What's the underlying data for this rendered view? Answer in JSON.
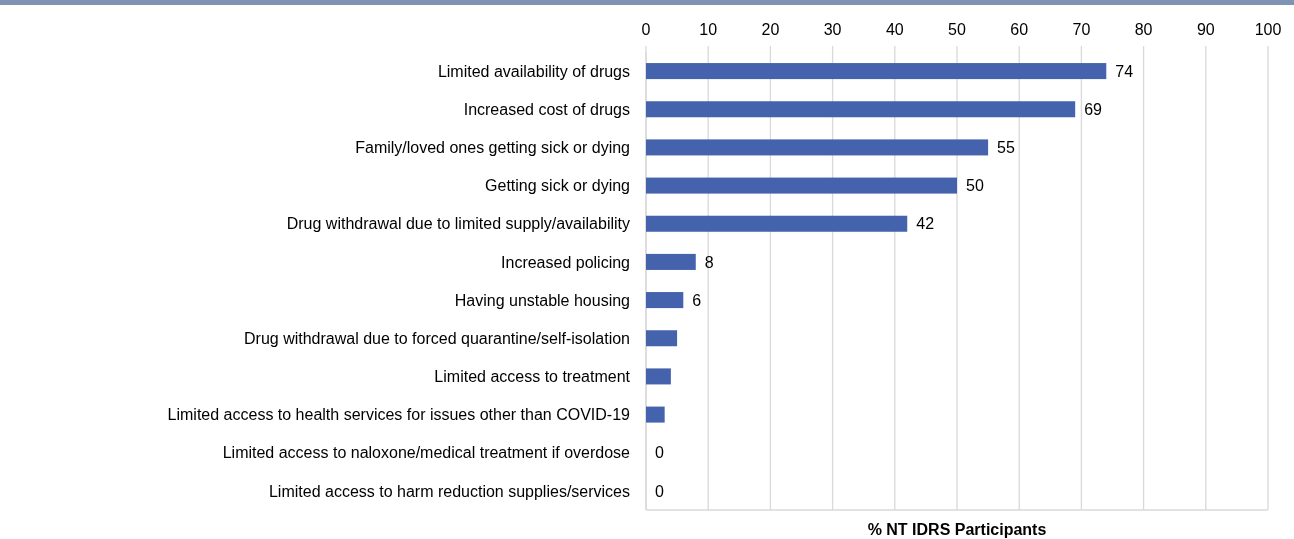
{
  "chart_data": {
    "type": "bar",
    "orientation": "horizontal",
    "xlabel": "% NT IDRS Participants",
    "categories": [
      "Limited availability of drugs",
      "Increased cost of drugs",
      "Family/loved ones getting sick or dying",
      "Getting sick or dying",
      "Drug withdrawal due to limited supply/availability",
      "Increased policing",
      "Having unstable housing",
      "Drug withdrawal due to forced quarantine/self-isolation",
      "Limited access to treatment",
      "Limited access to health services for issues other than COVID-19",
      "Limited access to naloxone/medical treatment if overdose",
      "Limited access to harm reduction supplies/services"
    ],
    "values": [
      74,
      69,
      55,
      50,
      42,
      8,
      6,
      5,
      4,
      3,
      0,
      0
    ],
    "value_labels": [
      "74",
      "69",
      "55",
      "50",
      "42",
      "8",
      "6",
      null,
      null,
      null,
      "0",
      "0"
    ],
    "color": "#4563ac",
    "xlim": [
      0,
      100
    ],
    "xticks": [
      0,
      10,
      20,
      30,
      40,
      50,
      60,
      70,
      80,
      90,
      100
    ],
    "grid": "x"
  }
}
